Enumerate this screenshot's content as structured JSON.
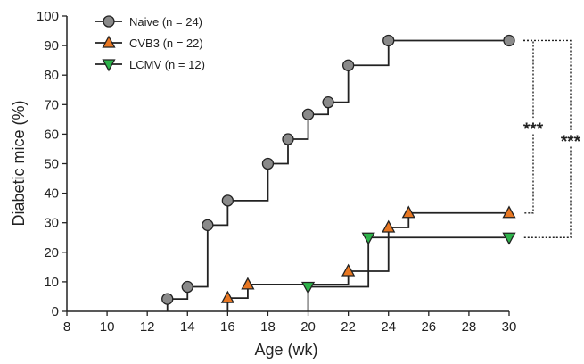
{
  "chart_data": {
    "type": "line",
    "step": true,
    "xlabel": "Age (wk)",
    "ylabel": "Diabetic mice (%)",
    "xlim": [
      8,
      30
    ],
    "ylim": [
      0,
      100
    ],
    "xticks": [
      "8",
      "10",
      "12",
      "14",
      "16",
      "18",
      "20",
      "22",
      "24",
      "26",
      "28",
      "30"
    ],
    "yticks": [
      "0",
      "10",
      "20",
      "30",
      "40",
      "50",
      "60",
      "70",
      "80",
      "90",
      "100"
    ],
    "grid": false,
    "legend_position": "top-left",
    "series": [
      {
        "name": "Naive",
        "n_label": "(n = 24)",
        "marker": "circle",
        "color": "#8a8a8a",
        "x": [
          13,
          14,
          15,
          16,
          18,
          19,
          20,
          21,
          22,
          24,
          30
        ],
        "y": [
          4.2,
          8.3,
          29.2,
          37.5,
          50,
          58.3,
          66.7,
          70.8,
          83.3,
          91.7,
          91.7
        ]
      },
      {
        "name": "CVB3",
        "n_label": "(n = 22)",
        "marker": "triangle-up",
        "color": "#e87722",
        "x": [
          16,
          17,
          22,
          24,
          25,
          30
        ],
        "y": [
          4.5,
          9.1,
          13.6,
          28.4,
          33.3,
          33.3
        ]
      },
      {
        "name": "LCMV",
        "n_label": "(n = 12)",
        "marker": "triangle-down",
        "color": "#2db34a",
        "x": [
          20,
          23,
          30
        ],
        "y": [
          8.3,
          25,
          25
        ]
      }
    ],
    "annotations": [
      {
        "text": "***",
        "from_series": "Naive",
        "to_series": "CVB3"
      },
      {
        "text": "***",
        "from_series": "Naive",
        "to_series": "LCMV"
      }
    ]
  }
}
